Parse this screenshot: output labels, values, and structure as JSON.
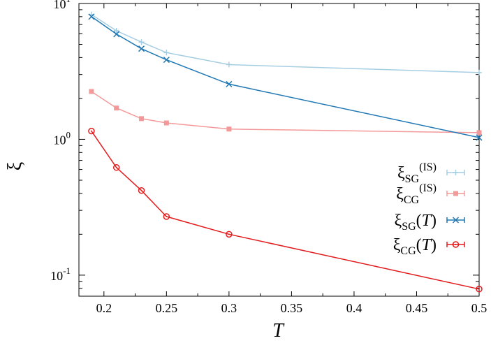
{
  "chart_data": {
    "type": "line",
    "xlabel": "T",
    "ylabel": "ξ",
    "xlim": [
      0.18,
      0.5
    ],
    "ylim": [
      0.07,
      10
    ],
    "yscale": "log",
    "grid": false,
    "legend_position": "right",
    "x_ticks": [
      "0.2",
      "0.25",
      "0.3",
      "0.35",
      "0.4",
      "0.45",
      "0.5"
    ],
    "x_tick_values": [
      0.2,
      0.25,
      0.3,
      0.35,
      0.4,
      0.45,
      0.5
    ],
    "y_ticks": [
      {
        "value": 10,
        "base": "10",
        "exp": "1"
      },
      {
        "value": 1,
        "base": "10",
        "exp": "0"
      },
      {
        "value": 0.1,
        "base": "10",
        "exp": "-1"
      }
    ],
    "series": [
      {
        "name_main": "ξ",
        "name_sub": "SG",
        "name_sup": "(IS)",
        "name_arg": "",
        "color": "#a6cee3",
        "marker": "plus",
        "x": [
          0.19,
          0.21,
          0.23,
          0.25,
          0.3,
          0.5
        ],
        "values": [
          8.3,
          6.3,
          5.2,
          4.35,
          3.55,
          3.1
        ]
      },
      {
        "name_main": "ξ",
        "name_sub": "CG",
        "name_sup": "(IS)",
        "name_arg": "",
        "color": "#f4999a",
        "marker": "square",
        "x": [
          0.19,
          0.21,
          0.23,
          0.25,
          0.3,
          0.5
        ],
        "values": [
          2.25,
          1.7,
          1.42,
          1.32,
          1.19,
          1.12
        ]
      },
      {
        "name_main": "ξ",
        "name_sub": "SG",
        "name_sup": "",
        "name_arg": "(T)",
        "color": "#1f78b4",
        "marker": "x",
        "x": [
          0.19,
          0.21,
          0.23,
          0.25,
          0.3,
          0.5
        ],
        "values": [
          8.0,
          5.95,
          4.65,
          3.85,
          2.55,
          1.03
        ]
      },
      {
        "name_main": "ξ",
        "name_sub": "CG",
        "name_sup": "",
        "name_arg": "(T)",
        "color": "#e31a1c",
        "marker": "circle",
        "x": [
          0.19,
          0.21,
          0.23,
          0.25,
          0.3,
          0.5
        ],
        "values": [
          1.15,
          0.62,
          0.42,
          0.27,
          0.2,
          0.079
        ]
      }
    ]
  }
}
